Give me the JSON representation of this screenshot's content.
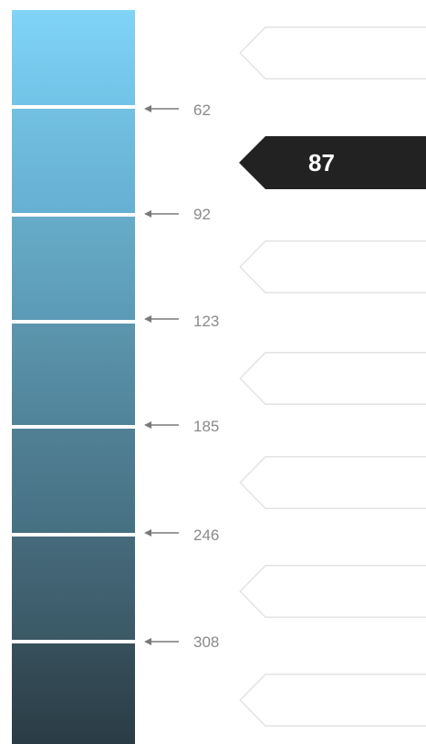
{
  "scale": {
    "swatch_colors": [
      "#7fd2f5",
      "#6fb9db",
      "#66a8c6",
      "#5a90a8",
      "#4f7b8f",
      "#43636f",
      "#344952"
    ],
    "swatch_colors_bottom": [
      "#6cc2e8",
      "#66aed0",
      "#5b98b5",
      "#4e8097",
      "#446e81",
      "#3a5662",
      "#293b44"
    ],
    "ticks": [
      "62",
      "92",
      "123",
      "185",
      "246",
      "308"
    ],
    "tick_color": "#7a7a7a"
  },
  "indicator": {
    "active_value": "87",
    "active_color": "#222222",
    "inactive_stroke": "#e3e3e3"
  }
}
